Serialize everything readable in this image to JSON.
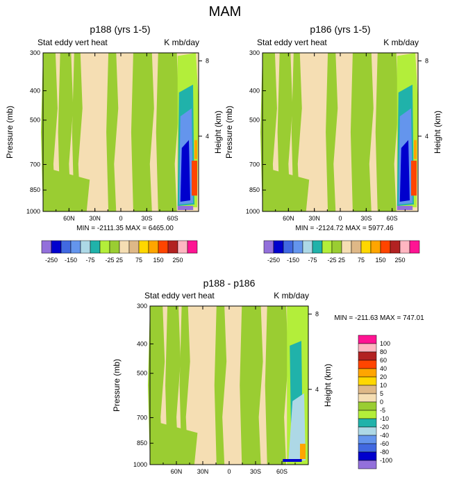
{
  "figure": {
    "title": "MAM"
  },
  "chart_data": [
    {
      "type": "contour",
      "title": "p188 (yrs 1-5)",
      "left_label": "Stat eddy vert heat",
      "right_label": "K mb/day",
      "ylabel": "Pressure (mb)",
      "ylabel_right": "Height (km)",
      "pressure_ticks": [
        "300",
        "400",
        "500",
        "700",
        "850",
        "1000"
      ],
      "height_ticks": [
        "8",
        "4"
      ],
      "lat_ticks": [
        "60N",
        "30N",
        "0",
        "30S",
        "60S"
      ],
      "ylim": [
        1000,
        300
      ],
      "xlim": [
        90,
        -90
      ],
      "stats_text": "MIN = -2111.35   MAX = 6465.00",
      "min": -2111.35,
      "max": 6465.0
    },
    {
      "type": "contour",
      "title": "p186 (yrs 1-5)",
      "left_label": "Stat eddy vert heat",
      "right_label": "K mb/day",
      "ylabel": "Pressure (mb)",
      "ylabel_right": "Height (km)",
      "pressure_ticks": [
        "300",
        "400",
        "500",
        "700",
        "850",
        "1000"
      ],
      "height_ticks": [
        "8",
        "4"
      ],
      "lat_ticks": [
        "60N",
        "30N",
        "0",
        "30S",
        "60S"
      ],
      "ylim": [
        1000,
        300
      ],
      "xlim": [
        90,
        -90
      ],
      "stats_text": "MIN = -2124.72   MAX = 5977.46",
      "min": -2124.72,
      "max": 5977.46
    },
    {
      "type": "contour",
      "title": "p188 - p186",
      "left_label": "Stat eddy vert heat",
      "right_label": "K mb/day",
      "ylabel": "Pressure (mb)",
      "ylabel_right": "Height (km)",
      "pressure_ticks": [
        "300",
        "400",
        "500",
        "700",
        "850",
        "1000"
      ],
      "height_ticks": [
        "8",
        "4"
      ],
      "lat_ticks": [
        "60N",
        "30N",
        "0",
        "30S",
        "60S"
      ],
      "ylim": [
        1000,
        300
      ],
      "xlim": [
        90,
        -90
      ],
      "stats_text": "MIN = -211.63   MAX = 747.01",
      "min": -211.63,
      "max": 747.01
    }
  ],
  "colorbar_top": {
    "colors": [
      "#9370DB",
      "#0000CD",
      "#4169E1",
      "#6495ED",
      "#ADD8E6",
      "#20B2AA",
      "#B3EE3A",
      "#9ACD32",
      "#F5DEB3",
      "#DEB887",
      "#FFD700",
      "#FFA500",
      "#FF4500",
      "#B22222",
      "#FFB6C1",
      "#FF1493"
    ],
    "tick_labels": [
      "-250",
      "-150",
      "-75",
      "-25",
      "25",
      "75",
      "150",
      "250"
    ]
  },
  "colorbar_diff": {
    "colors": [
      "#9370DB",
      "#0000CD",
      "#4169E1",
      "#6495ED",
      "#ADD8E6",
      "#20B2AA",
      "#B3EE3A",
      "#9ACD32",
      "#F5DEB3",
      "#DEB887",
      "#FFD700",
      "#FFA500",
      "#FF4500",
      "#B22222",
      "#FFB6C1",
      "#FF1493"
    ],
    "tick_labels": [
      "100",
      "80",
      "60",
      "40",
      "20",
      "10",
      "5",
      "0",
      "-5",
      "-10",
      "-20",
      "-40",
      "-60",
      "-80",
      "-100"
    ]
  }
}
